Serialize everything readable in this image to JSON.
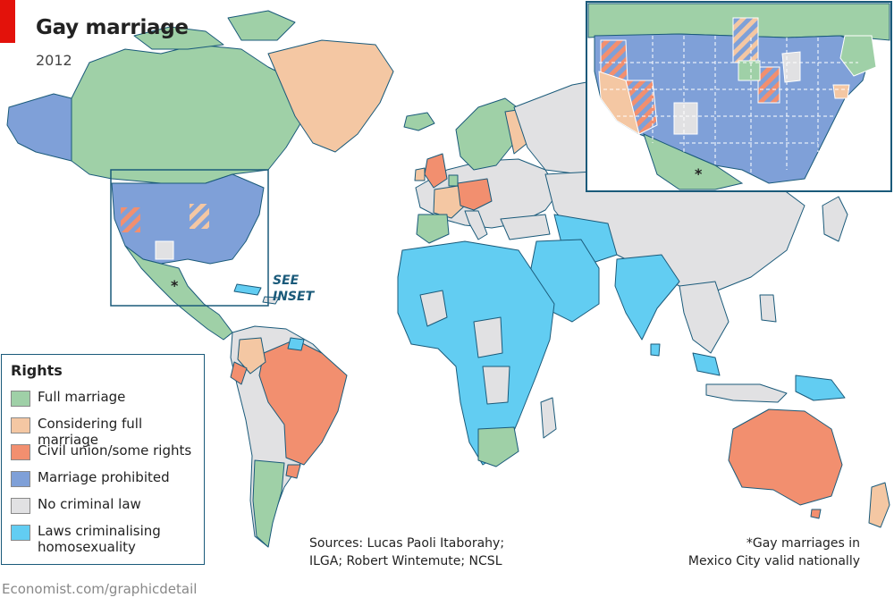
{
  "title": "Gay marriage",
  "subtitle": "2012",
  "inset_label": "SEE\nINSET",
  "mexico_marker": "*",
  "legend": {
    "title": "Rights",
    "items": [
      {
        "label": "Full marriage",
        "color": "#9fd0a7"
      },
      {
        "label": "Considering full marriage",
        "color": "#f4c7a3"
      },
      {
        "label": "Civil union/some rights",
        "color": "#f28f6f"
      },
      {
        "label": "Marriage prohibited",
        "color": "#7fa0d8"
      },
      {
        "label": "No criminal law",
        "color": "#e1e1e3"
      },
      {
        "label": "Laws criminalising\nhomosexuality",
        "color": "#62cdf2"
      }
    ]
  },
  "sources": "Sources: Lucas Paoli Itaborahy;\nILGA; Robert Wintemute; NCSL",
  "footnote": "*Gay marriages in\nMexico City valid nationally",
  "footer": "Economist.com/graphicdetail",
  "colors": {
    "ocean": "#ffffff",
    "border": "#8a5a4a",
    "coast": "#1a5a7a",
    "inset_frame": "#1a5a7a",
    "accent": "#e3120b"
  }
}
